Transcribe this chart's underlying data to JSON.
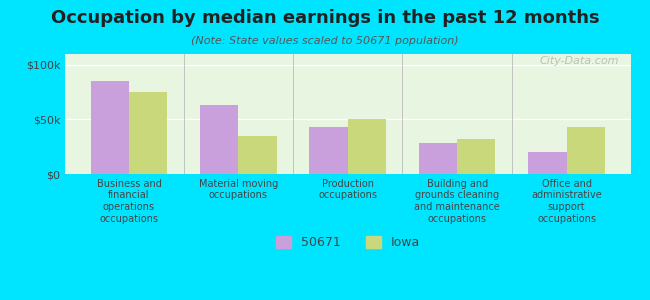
{
  "title": "Occupation by median earnings in the past 12 months",
  "subtitle": "(Note: State values scaled to 50671 population)",
  "categories": [
    "Business and\nfinancial\noperations\noccupations",
    "Material moving\noccupations",
    "Production\noccupations",
    "Building and\ngrounds cleaning\nand maintenance\noccupations",
    "Office and\nadministrative\nsupport\noccupations"
  ],
  "values_50671": [
    85000,
    63000,
    43000,
    28000,
    20000
  ],
  "values_iowa": [
    75000,
    35000,
    50000,
    32000,
    43000
  ],
  "color_50671": "#c9a0dc",
  "color_iowa": "#c8d87a",
  "background_outer": "#00e5ff",
  "background_inner": "#e8f5e0",
  "yticks": [
    0,
    50000,
    100000
  ],
  "ytick_labels": [
    "$0",
    "$50k",
    "$100k"
  ],
  "ylim": [
    0,
    110000
  ],
  "legend_label_50671": "50671",
  "legend_label_iowa": "Iowa",
  "watermark": "City-Data.com",
  "bar_width": 0.35
}
